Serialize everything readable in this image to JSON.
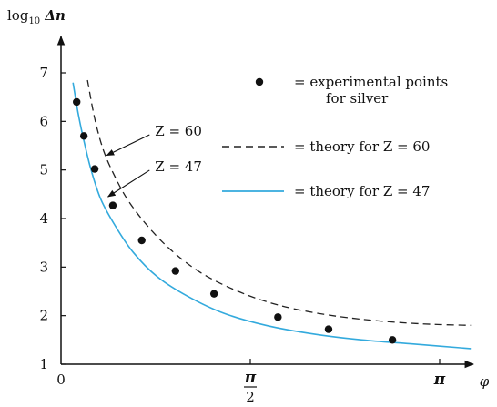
{
  "chart_data": {
    "type": "line",
    "title": "",
    "ylabel_prefix": "log",
    "ylabel_subscript": "10",
    "ylabel_suffix": "Δn",
    "xlabel": "φ",
    "xlim": [
      0,
      3.45
    ],
    "ylim": [
      1,
      7.75
    ],
    "yticks": [
      1,
      2,
      3,
      4,
      5,
      6,
      7
    ],
    "ytick_labels": [
      "1",
      "2",
      "3",
      "4",
      "5",
      "6",
      "7"
    ],
    "xtick_zero_label": "0",
    "xtick_half_pi_num": "π",
    "xtick_half_pi_den": "2",
    "xtick_pi_label": "π",
    "grid": false,
    "series": [
      {
        "name": "theory for Z = 60",
        "style": "dashed",
        "color": "#222222",
        "x": [
          0.22,
          0.26,
          0.3,
          0.36,
          0.45,
          0.55,
          0.7,
          0.9,
          1.15,
          1.45,
          1.8,
          2.2,
          2.6,
          3.0,
          3.4
        ],
        "y": [
          6.85,
          6.3,
          5.85,
          5.35,
          4.85,
          4.4,
          3.9,
          3.38,
          2.9,
          2.52,
          2.22,
          2.02,
          1.9,
          1.83,
          1.8
        ]
      },
      {
        "name": "theory for Z = 47",
        "style": "solid",
        "color": "#33aadd",
        "x": [
          0.1,
          0.14,
          0.19,
          0.25,
          0.33,
          0.45,
          0.6,
          0.8,
          1.05,
          1.35,
          1.7,
          2.1,
          2.5,
          2.9,
          3.4
        ],
        "y": [
          6.8,
          6.2,
          5.6,
          5.0,
          4.4,
          3.85,
          3.3,
          2.8,
          2.4,
          2.05,
          1.8,
          1.62,
          1.5,
          1.42,
          1.32
        ]
      }
    ],
    "points": {
      "name": "experimental points for silver",
      "x": [
        0.13,
        0.19,
        0.28,
        0.43,
        0.67,
        0.95,
        1.27,
        1.8,
        2.22,
        2.75
      ],
      "y": [
        6.4,
        5.7,
        5.02,
        4.27,
        3.55,
        2.92,
        2.45,
        1.97,
        1.72,
        1.5
      ]
    },
    "annotations": [
      {
        "text": "Z = 60",
        "label_x": 0.78,
        "label_y": 5.8,
        "arrow_to_x": 0.38,
        "arrow_to_y": 5.3
      },
      {
        "text": "Z = 47",
        "label_x": 0.78,
        "label_y": 5.07,
        "arrow_to_x": 0.39,
        "arrow_to_y": 4.45
      }
    ],
    "legend": {
      "placement": "top-right",
      "items": [
        {
          "kind": "marker",
          "line1": "= experimental points",
          "line2": "for silver"
        },
        {
          "kind": "dashed",
          "text": "= theory for Z = 60",
          "color": "#222222"
        },
        {
          "kind": "solid",
          "text": "= theory for Z = 47",
          "color": "#33aadd"
        }
      ]
    }
  }
}
